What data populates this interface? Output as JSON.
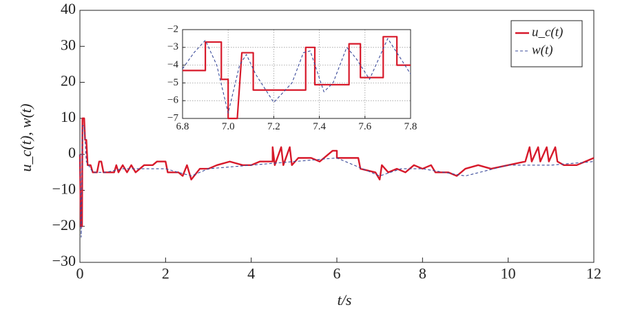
{
  "chart_data": [
    {
      "type": "line",
      "x_label": "t/s",
      "y_label": "u_c(t), w(t)",
      "xlim": [
        0,
        12
      ],
      "ylim": [
        -30,
        40
      ],
      "xticks": [
        0,
        2,
        4,
        6,
        8,
        10,
        12
      ],
      "yticks": [
        {
          "value": -30,
          "label": "−30"
        },
        {
          "value": -20,
          "label": "−20"
        },
        {
          "value": -10,
          "label": "−10"
        },
        0,
        10,
        20,
        30,
        40
      ],
      "grid": false,
      "legend": "upper right",
      "series": [
        {
          "name": "u_c(t)",
          "color": "#d7192a",
          "linestyle": "solid",
          "x": [
            0,
            0.02,
            0.05,
            0.06,
            0.1,
            0.12,
            0.15,
            0.18,
            0.25,
            0.3,
            0.4,
            0.45,
            0.5,
            0.55,
            0.8,
            0.85,
            0.9,
            1.0,
            1.1,
            1.2,
            1.3,
            1.5,
            1.7,
            1.8,
            2.0,
            2.05,
            2.3,
            2.4,
            2.5,
            2.6,
            2.8,
            3.0,
            3.2,
            3.5,
            3.8,
            4.0,
            4.2,
            4.5,
            4.5,
            4.55,
            4.7,
            4.75,
            4.9,
            4.95,
            5.1,
            5.4,
            5.6,
            5.9,
            6.0,
            6.0,
            6.5,
            6.55,
            6.9,
            7.0,
            7.05,
            7.2,
            7.4,
            7.6,
            7.8,
            8.0,
            8.2,
            8.3,
            8.6,
            8.8,
            9.0,
            9.3,
            9.6,
            10.0,
            10.4,
            10.5,
            10.55,
            10.7,
            10.75,
            10.9,
            10.95,
            11.1,
            11.15,
            11.3,
            11.6,
            11.8,
            12.0
          ],
          "values": [
            0,
            -20,
            -20,
            10,
            10,
            4,
            4,
            -3,
            -3,
            -5,
            -5,
            -2,
            -2,
            -5,
            -5,
            -3,
            -5,
            -3,
            -5,
            -3,
            -5,
            -3,
            -3,
            -2,
            -2,
            -5,
            -5,
            -6,
            -3,
            -7,
            -4,
            -4,
            -3,
            -2,
            -3,
            -3,
            -2,
            -2,
            2,
            -3,
            2,
            -3,
            2,
            -3,
            -1,
            -1,
            -2,
            1,
            1,
            -1,
            -1,
            -4,
            -5,
            -7,
            -3,
            -5,
            -4,
            -5,
            -3,
            -4,
            -3,
            -5,
            -5,
            -6,
            -4,
            -3,
            -4,
            -3,
            -2,
            2,
            -2,
            2,
            -2,
            2,
            -2,
            2,
            -2,
            -3,
            -3,
            -2,
            -1
          ]
        },
        {
          "name": "w(t)",
          "color": "#3a4a9a",
          "linestyle": "dashed",
          "x": [
            0,
            0.03,
            0.06,
            0.1,
            0.15,
            0.3,
            0.6,
            1,
            2,
            2.6,
            3,
            4,
            5,
            6,
            6.6,
            7,
            7.5,
            8,
            8.5,
            9,
            10,
            11,
            12
          ],
          "values": [
            0,
            -23,
            8,
            8,
            -2,
            -5,
            -5,
            -4,
            -4,
            -6,
            -4,
            -3,
            -2,
            -1,
            -4,
            -6,
            -4,
            -4,
            -5,
            -6,
            -3,
            -3,
            -2
          ]
        }
      ]
    },
    {
      "type": "line",
      "xlim": [
        6.8,
        7.8
      ],
      "ylim": [
        -7,
        -2
      ],
      "xticks": [
        6.8,
        {
          "value": 7,
          "label": "7.0"
        },
        7.2,
        7.4,
        7.6,
        7.8
      ],
      "yticks": [
        {
          "value": -7,
          "label": "−7"
        },
        {
          "value": -6,
          "label": "−6"
        },
        {
          "value": -5,
          "label": "−5"
        },
        {
          "value": -4,
          "label": "−4"
        },
        {
          "value": -3,
          "label": "−3"
        },
        {
          "value": -2,
          "label": "−2"
        }
      ],
      "grid": true,
      "series": [
        {
          "color": "#d7192a",
          "linestyle": "solid",
          "x": [
            6.8,
            6.9,
            6.9,
            6.97,
            6.97,
            7.0,
            7.0,
            7.04,
            7.06,
            7.11,
            7.11,
            7.34,
            7.34,
            7.38,
            7.38,
            7.53,
            7.53,
            7.58,
            7.58,
            7.68,
            7.68,
            7.74,
            7.74,
            7.8
          ],
          "values": [
            -4.3,
            -4.3,
            -2.7,
            -2.7,
            -4.8,
            -4.8,
            -7,
            -7,
            -3.3,
            -3.3,
            -5.4,
            -5.4,
            -3,
            -3,
            -5.1,
            -5.1,
            -2.8,
            -2.8,
            -4.7,
            -4.7,
            -2.4,
            -2.4,
            -4,
            -4
          ]
        },
        {
          "color": "#3a4a9a",
          "linestyle": "dashed",
          "x": [
            6.8,
            6.85,
            6.9,
            6.95,
            7.0,
            7.05,
            7.08,
            7.12,
            7.2,
            7.28,
            7.33,
            7.36,
            7.42,
            7.46,
            7.52,
            7.56,
            7.62,
            7.7,
            7.75,
            7.8
          ],
          "values": [
            -4.2,
            -3.3,
            -2.6,
            -4,
            -6.7,
            -4,
            -3.4,
            -4.5,
            -6.1,
            -5,
            -3.3,
            -3.2,
            -5.5,
            -5,
            -3,
            -3.6,
            -4.8,
            -2.5,
            -3.5,
            -4.5
          ]
        }
      ]
    }
  ]
}
